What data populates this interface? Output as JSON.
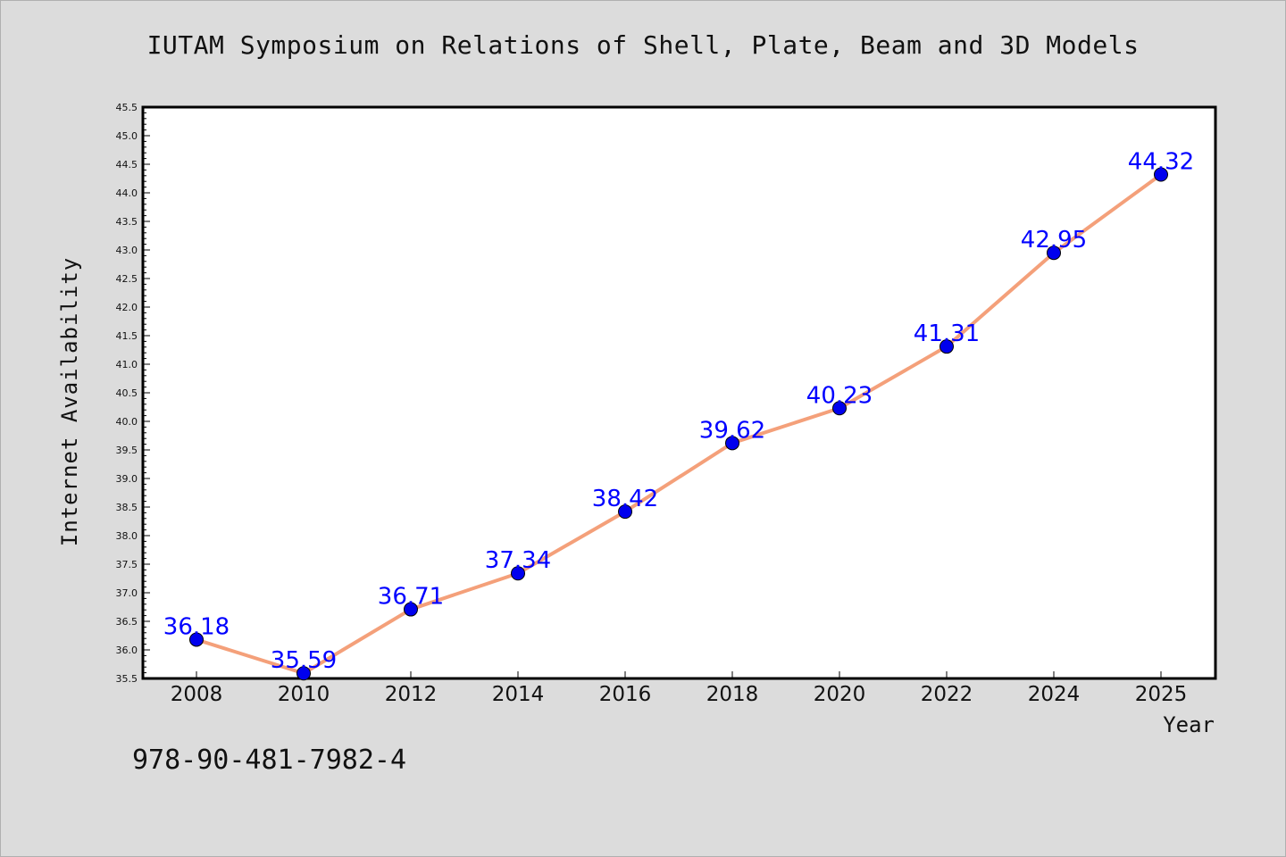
{
  "isbn": "978-90-481-7982-4",
  "chart_data": {
    "type": "line",
    "title": "IUTAM Symposium on Relations of Shell, Plate, Beam and 3D Models",
    "xlabel": "Year",
    "ylabel": "Internet Availability",
    "categories": [
      "2008",
      "2010",
      "2012",
      "2014",
      "2016",
      "2018",
      "2020",
      "2022",
      "2024",
      "2025"
    ],
    "values": [
      36.18,
      35.59,
      36.71,
      37.34,
      38.42,
      39.62,
      40.23,
      41.31,
      42.95,
      44.32
    ],
    "data_labels": [
      "36.18",
      "35.59",
      "36.71",
      "37.34",
      "38.42",
      "39.62",
      "40.23",
      "41.31",
      "42.95",
      "44.32"
    ],
    "ylim": [
      35.5,
      45.5
    ],
    "y_ticks": [
      "35.5",
      "36.0",
      "36.5",
      "37.0",
      "37.5",
      "38.0",
      "38.5",
      "39.0",
      "39.5",
      "40.0",
      "40.5",
      "41.0",
      "41.5",
      "42.0",
      "42.5",
      "43.0",
      "43.5",
      "44.0",
      "44.5",
      "45.0",
      "45.5"
    ],
    "grid": false,
    "line_color": "#f4a07a",
    "marker_color": "#0000ee",
    "label_color": "#0000ff"
  }
}
